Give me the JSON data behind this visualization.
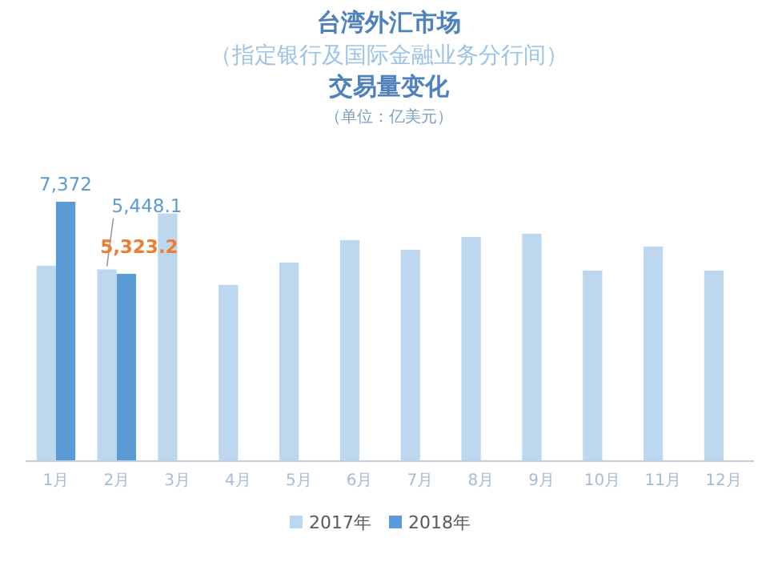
{
  "chart_data": {
    "type": "bar",
    "title": "台湾外汇市场",
    "subtitle": "（指定银行及国际金融业务分行间）",
    "annotations": [
      "交易量变化",
      "（单位：亿美元）"
    ],
    "categories": [
      "1月",
      "2月",
      "3月",
      "4月",
      "5月",
      "6月",
      "7月",
      "8月",
      "9月",
      "10月",
      "11月",
      "12月"
    ],
    "series": [
      {
        "name": "2017年",
        "color": "#bdd7ee",
        "values": [
          5555,
          5448.1,
          7040,
          5010,
          5646,
          6282,
          6009,
          6373,
          6463,
          5419,
          6100,
          5419
        ],
        "value_labels": [
          null,
          "5,448.1",
          null,
          null,
          null,
          null,
          null,
          null,
          null,
          null,
          null,
          null
        ]
      },
      {
        "name": "2018年",
        "color": "#5b9bd5",
        "values": [
          7372,
          5323.2,
          null,
          null,
          null,
          null,
          null,
          null,
          null,
          null,
          null,
          null
        ],
        "value_labels": [
          "7,372",
          "5,323.2",
          null,
          null,
          null,
          null,
          null,
          null,
          null,
          null,
          null,
          null
        ]
      }
    ],
    "legend": "bottom",
    "grid": false
  }
}
